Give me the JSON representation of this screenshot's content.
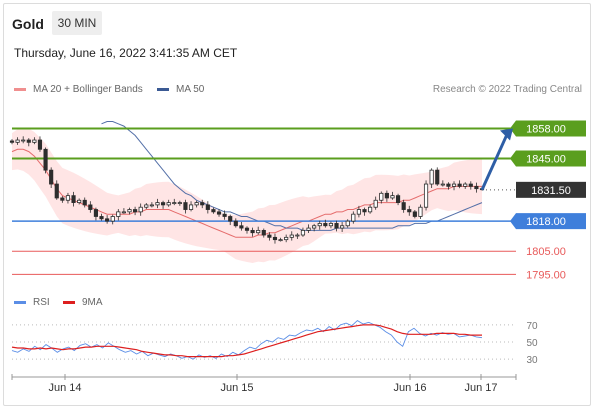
{
  "header": {
    "symbol": "Gold",
    "timeframe": "30 MIN",
    "datetime": "Thursday, June 16, 2022 3:41:35 AM CET"
  },
  "legend": {
    "ma20_label": "MA 20 + Bollinger Bands",
    "ma50_label": "MA 50",
    "research": "Research © 2022 Trading Central",
    "rsi_label": "RSI",
    "rsi_ma_label": "9MA"
  },
  "colors": {
    "resistance": "#5a9e1e",
    "support": "#3f7fdb",
    "minor_level": "#e85a5a",
    "candle": "#2d2d2d",
    "ma20": "#e56c6c",
    "bollinger_fill": "#ffdcdc",
    "ma50": "#5470a8",
    "rsi": "#5b8ee6",
    "rsi_ma": "#dd1f1f",
    "arrow": "#2e5ea6",
    "current_price": "#333333"
  },
  "chart_data": [
    {
      "type": "candlestick",
      "title": "Gold 30 MIN",
      "x_ticks": [
        "Jun 14",
        "Jun 15",
        "Jun 16",
        "Jun 17"
      ],
      "ylim": [
        1790,
        1872
      ],
      "levels": [
        {
          "value": 1858.0,
          "label": "1858.00",
          "kind": "resistance"
        },
        {
          "value": 1845.0,
          "label": "1845.00",
          "kind": "resistance"
        },
        {
          "value": 1831.5,
          "label": "1831.50",
          "kind": "current_price"
        },
        {
          "value": 1818.0,
          "label": "1818.00",
          "kind": "support"
        },
        {
          "value": 1805.0,
          "label": "1805.00",
          "kind": "minor"
        },
        {
          "value": 1795.0,
          "label": "1795.00",
          "kind": "minor"
        }
      ],
      "arrow": {
        "from": 1831.5,
        "to": 1858.0,
        "direction": "up"
      },
      "close_series": [
        1852,
        1853,
        1853,
        1852,
        1853,
        1849,
        1840,
        1834,
        1828,
        1827,
        1829,
        1826,
        1827,
        1825,
        1823,
        1820,
        1819,
        1818,
        1820,
        1822,
        1822,
        1823,
        1822,
        1824,
        1825,
        1825,
        1826,
        1825,
        1826,
        1826,
        1826,
        1823,
        1825,
        1826,
        1825,
        1823,
        1822,
        1821,
        1820,
        1818,
        1816,
        1815,
        1814,
        1813,
        1814,
        1812,
        1811,
        1810,
        1810,
        1811,
        1812,
        1812,
        1814,
        1815,
        1816,
        1817,
        1816,
        1817,
        1815,
        1816,
        1818,
        1821,
        1823,
        1822,
        1824,
        1827,
        1830,
        1828,
        1829,
        1826,
        1823,
        1822,
        1820,
        1824,
        1834,
        1840,
        1834,
        1834,
        1833,
        1834,
        1833,
        1834,
        1833,
        1832,
        1832
      ],
      "ma20_series": [
        1848,
        1849,
        1849,
        1848,
        1846,
        1843,
        1840,
        1836,
        1832,
        1829,
        1828,
        1827,
        1826,
        1825,
        1824,
        1823,
        1822,
        1821,
        1821,
        1821,
        1821,
        1821,
        1822,
        1822,
        1823,
        1823,
        1823,
        1823,
        1823,
        1822,
        1821,
        1820,
        1819,
        1818,
        1817,
        1816,
        1815,
        1814,
        1813,
        1812,
        1811,
        1811,
        1811,
        1811,
        1812,
        1812,
        1813,
        1813,
        1814,
        1815,
        1816,
        1817,
        1818,
        1818,
        1819,
        1820,
        1821,
        1821,
        1822,
        1822,
        1823,
        1823,
        1824,
        1825,
        1825,
        1826,
        1826,
        1826,
        1826,
        1826,
        1827,
        1827,
        1828,
        1829,
        1830,
        1831,
        1832,
        1832,
        1832,
        1833,
        1833,
        1833,
        1833,
        1833,
        1833
      ],
      "ma50_series": [
        1860,
        1861,
        1861,
        1860,
        1859,
        1857,
        1855,
        1852,
        1849,
        1846,
        1843,
        1840,
        1837,
        1834,
        1832,
        1830,
        1829,
        1827,
        1826,
        1825,
        1824,
        1823,
        1822,
        1822,
        1821,
        1820,
        1820,
        1819,
        1818,
        1818,
        1817,
        1816,
        1816,
        1815,
        1815,
        1815,
        1814,
        1814,
        1814,
        1814,
        1814,
        1814,
        1815,
        1815,
        1815,
        1815,
        1815,
        1815,
        1815,
        1815,
        1815,
        1815,
        1815,
        1816,
        1816,
        1816,
        1817,
        1817,
        1817,
        1818,
        1818,
        1819,
        1820,
        1821,
        1822,
        1823,
        1824,
        1825,
        1826
      ]
    },
    {
      "type": "line",
      "title": "RSI",
      "x_ticks": [
        "Jun 14",
        "Jun 15",
        "Jun 16",
        "Jun 17"
      ],
      "y_ticks": [
        70,
        50,
        30
      ],
      "ylim": [
        15,
        85
      ],
      "series": [
        {
          "name": "RSI",
          "values": [
            40,
            38,
            42,
            39,
            45,
            41,
            47,
            43,
            38,
            42,
            44,
            40,
            46,
            48,
            44,
            47,
            43,
            49,
            45,
            41,
            38,
            40,
            36,
            39,
            34,
            37,
            35,
            33,
            36,
            34,
            31,
            33,
            30,
            35,
            32,
            34,
            31,
            36,
            33,
            38,
            35,
            40,
            44,
            42,
            48,
            52,
            50,
            55,
            53,
            58,
            57,
            61,
            64,
            63,
            66,
            62,
            68,
            64,
            70,
            72,
            69,
            75,
            71,
            73,
            70,
            67,
            62,
            58,
            50,
            45,
            62,
            66,
            60,
            57,
            60,
            58,
            61,
            59,
            60,
            56,
            57,
            58,
            56,
            55
          ]
        },
        {
          "name": "9MA",
          "values": [
            44,
            43,
            43,
            42,
            42,
            43,
            42,
            43,
            42,
            41,
            42,
            42,
            43,
            44,
            44,
            45,
            45,
            45,
            45,
            44,
            43,
            42,
            41,
            39,
            38,
            37,
            36,
            35,
            35,
            34,
            34,
            33,
            33,
            33,
            33,
            33,
            33,
            33,
            34,
            34,
            35,
            36,
            38,
            40,
            42,
            44,
            46,
            48,
            50,
            52,
            54,
            56,
            58,
            60,
            62,
            63,
            64,
            65,
            66,
            67,
            68,
            69,
            70,
            70,
            70,
            69,
            67,
            65,
            62,
            60,
            59,
            59,
            59,
            59,
            59,
            60,
            60,
            60,
            60,
            59,
            59,
            58,
            58,
            58
          ]
        }
      ]
    }
  ]
}
